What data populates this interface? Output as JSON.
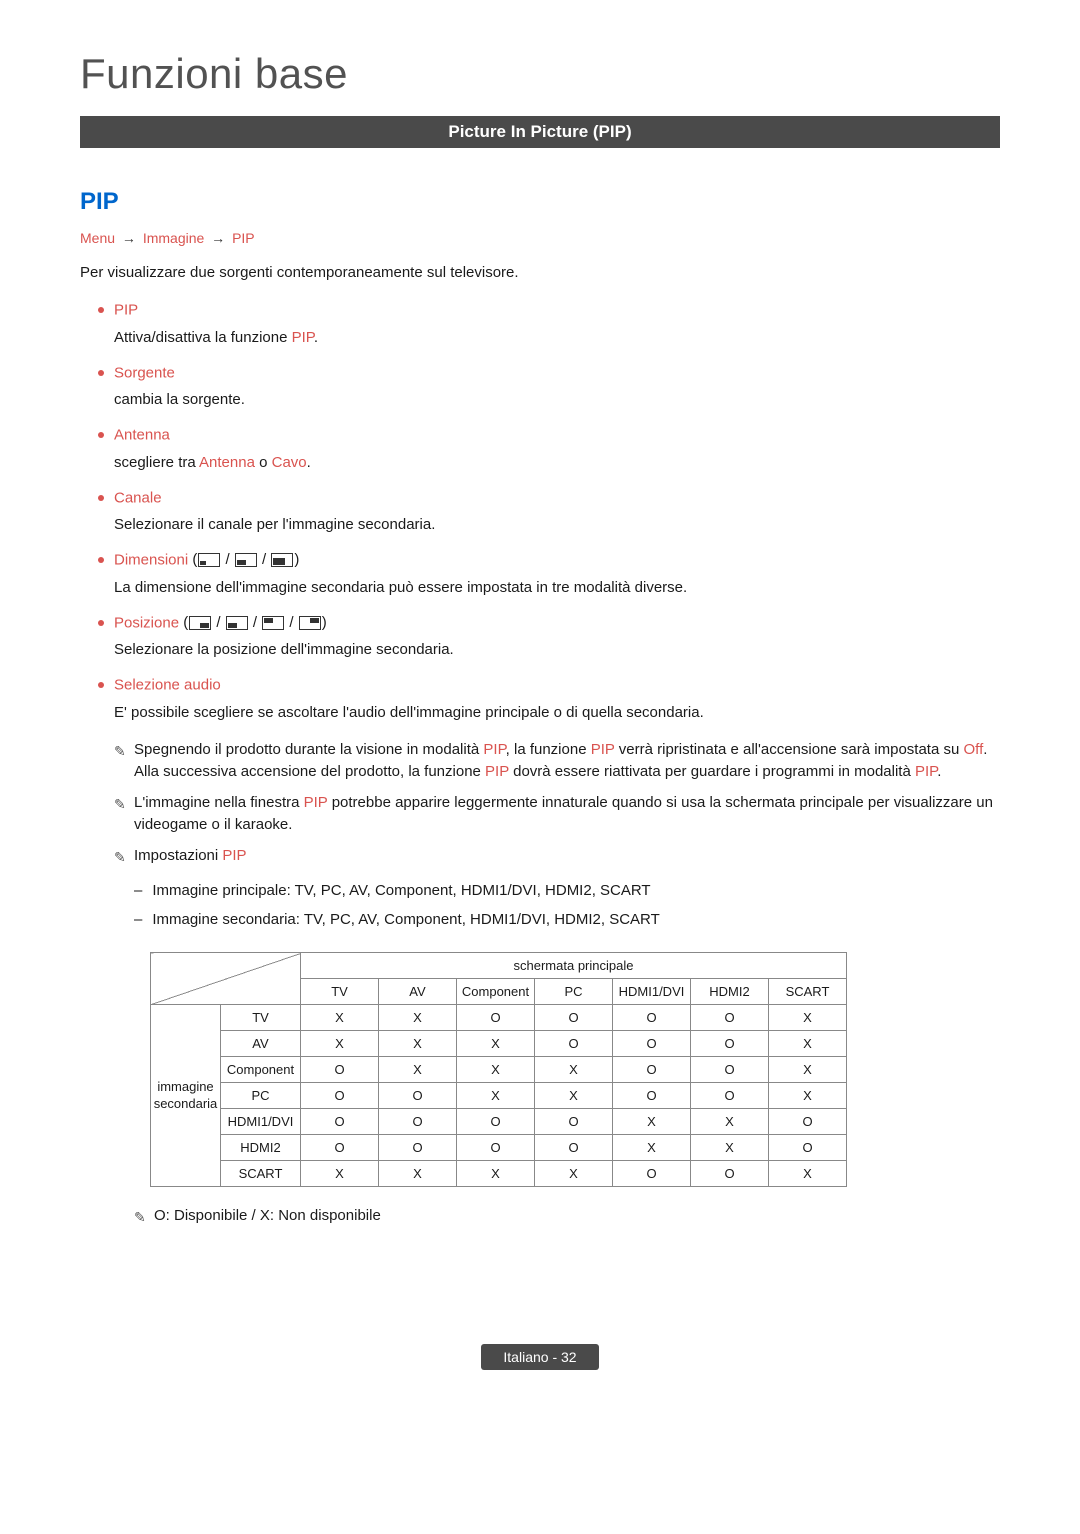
{
  "page_title": "Funzioni base",
  "section_banner": "Picture In Picture (PIP)",
  "subsection_title": "PIP",
  "breadcrumb": {
    "p1": "Menu",
    "p2": "Immagine",
    "p3": "PIP",
    "arrow": "→"
  },
  "intro": "Per visualizzare due sorgenti contemporaneamente sul televisore.",
  "colors": {
    "accent_blue": "#0066cc",
    "accent_red": "#d9534f",
    "banner_bg": "#4a4a4a",
    "text": "#1a1a1a",
    "border": "#888888"
  },
  "bullets": [
    {
      "label": "PIP",
      "color": "#d9534f",
      "desc_pre": "Attiva/disattiva la funzione ",
      "desc_red": "PIP",
      "desc_post": "."
    },
    {
      "label": "Sorgente",
      "color": "#d9534f",
      "desc_pre": "cambia la sorgente.",
      "desc_red": "",
      "desc_post": ""
    },
    {
      "label": "Antenna",
      "color": "#d9534f",
      "desc_pre": "scegliere tra ",
      "desc_red": "Antenna",
      "desc_mid": " o ",
      "desc_red2": "Cavo",
      "desc_post": "."
    },
    {
      "label": "Canale",
      "color": "#d9534f",
      "desc_pre": "Selezionare il canale per l'immagine secondaria.",
      "desc_red": "",
      "desc_post": ""
    },
    {
      "label": "Dimensioni",
      "color": "#d9534f",
      "has_size_icons": true,
      "desc_pre": "La dimensione dell'immagine secondaria può essere impostata in tre modalità diverse.",
      "desc_red": "",
      "desc_post": ""
    },
    {
      "label": "Posizione",
      "color": "#d9534f",
      "has_pos_icons": true,
      "desc_pre": "Selezionare la posizione dell'immagine secondaria.",
      "desc_red": "",
      "desc_post": ""
    },
    {
      "label": "Selezione audio",
      "color": "#d9534f",
      "desc_pre": "E' possibile scegliere se ascoltare l'audio dell'immagine principale o di quella secondaria.",
      "desc_red": "",
      "desc_post": ""
    }
  ],
  "notes": [
    {
      "pre": "Spegnendo il prodotto durante la visione in modalità ",
      "r1": "PIP",
      "mid1": ", la funzione ",
      "r2": "PIP",
      "mid2": " verrà ripristinata e all'accensione sarà impostata su ",
      "r3": "Off",
      "mid3": ". Alla successiva accensione del prodotto, la funzione ",
      "r4": "PIP",
      "post": " dovrà essere riattivata per guardare i programmi in modalità ",
      "r5": "PIP",
      "end": "."
    },
    {
      "pre": "L'immagine nella finestra ",
      "r1": "PIP",
      "post": " potrebbe apparire leggermente innaturale quando si usa la schermata principale per visualizzare un videogame o il karaoke."
    },
    {
      "pre": "Impostazioni ",
      "r1": "PIP",
      "post": ""
    }
  ],
  "sub_items": [
    "Immagine principale: TV, PC, AV, Component, HDMI1/DVI, HDMI2, SCART",
    "Immagine secondaria: TV, PC, AV, Component, HDMI1/DVI, HDMI2, SCART"
  ],
  "table": {
    "top_header": "schermata principale",
    "side_header": "immagine secondaria",
    "cols": [
      "TV",
      "AV",
      "Component",
      "PC",
      "HDMI1/DVI",
      "HDMI2",
      "SCART"
    ],
    "rows": [
      "TV",
      "AV",
      "Component",
      "PC",
      "HDMI1/DVI",
      "HDMI2",
      "SCART"
    ],
    "cells": [
      [
        "X",
        "X",
        "O",
        "O",
        "O",
        "O",
        "X"
      ],
      [
        "X",
        "X",
        "X",
        "O",
        "O",
        "O",
        "X"
      ],
      [
        "O",
        "X",
        "X",
        "X",
        "O",
        "O",
        "X"
      ],
      [
        "O",
        "O",
        "X",
        "X",
        "O",
        "O",
        "X"
      ],
      [
        "O",
        "O",
        "O",
        "O",
        "X",
        "X",
        "O"
      ],
      [
        "O",
        "O",
        "O",
        "O",
        "X",
        "X",
        "O"
      ],
      [
        "X",
        "X",
        "X",
        "X",
        "O",
        "O",
        "X"
      ]
    ]
  },
  "legend": "O: Disponibile / X: Non disponibile",
  "footer": "Italiano - 32"
}
